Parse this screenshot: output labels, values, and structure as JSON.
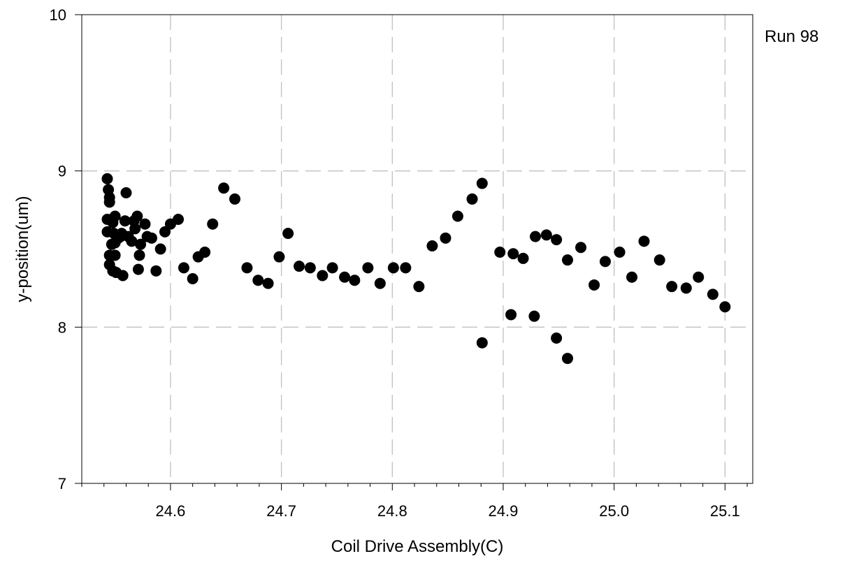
{
  "chart_data": {
    "type": "scatter",
    "title": "",
    "annotation": "Run 98",
    "xlabel": "Coil Drive Assembly(C)",
    "ylabel": "y-position(um)",
    "xlim": [
      24.52,
      25.125
    ],
    "ylim": [
      7,
      10
    ],
    "x_ticks": [
      24.6,
      24.7,
      24.8,
      24.9,
      25.0,
      25.1
    ],
    "x_tick_labels": [
      "24.6",
      "24.7",
      "24.8",
      "24.9",
      "25.0",
      "25.1"
    ],
    "x_minor_step": 0.02,
    "y_ticks": [
      7,
      8,
      9,
      10
    ],
    "y_tick_labels": [
      "7",
      "8",
      "9",
      "10"
    ],
    "grid": true,
    "grid_style": "dashed",
    "marker_color": "#000000",
    "grid_color": "#c0c0c0",
    "points": [
      {
        "x": 24.543,
        "y": 8.95
      },
      {
        "x": 24.544,
        "y": 8.88
      },
      {
        "x": 24.545,
        "y": 8.83
      },
      {
        "x": 24.545,
        "y": 8.8
      },
      {
        "x": 24.543,
        "y": 8.69
      },
      {
        "x": 24.543,
        "y": 8.61
      },
      {
        "x": 24.545,
        "y": 8.46
      },
      {
        "x": 24.545,
        "y": 8.4
      },
      {
        "x": 24.547,
        "y": 8.53
      },
      {
        "x": 24.548,
        "y": 8.67
      },
      {
        "x": 24.549,
        "y": 8.6
      },
      {
        "x": 24.548,
        "y": 8.36
      },
      {
        "x": 24.55,
        "y": 8.71
      },
      {
        "x": 24.55,
        "y": 8.54
      },
      {
        "x": 24.55,
        "y": 8.46
      },
      {
        "x": 24.551,
        "y": 8.35
      },
      {
        "x": 24.553,
        "y": 8.57
      },
      {
        "x": 24.555,
        "y": 8.58
      },
      {
        "x": 24.556,
        "y": 8.6
      },
      {
        "x": 24.557,
        "y": 8.33
      },
      {
        "x": 24.559,
        "y": 8.68
      },
      {
        "x": 24.56,
        "y": 8.86
      },
      {
        "x": 24.562,
        "y": 8.58
      },
      {
        "x": 24.565,
        "y": 8.55
      },
      {
        "x": 24.567,
        "y": 8.68
      },
      {
        "x": 24.568,
        "y": 8.63
      },
      {
        "x": 24.57,
        "y": 8.71
      },
      {
        "x": 24.571,
        "y": 8.37
      },
      {
        "x": 24.572,
        "y": 8.46
      },
      {
        "x": 24.573,
        "y": 8.53
      },
      {
        "x": 24.577,
        "y": 8.66
      },
      {
        "x": 24.579,
        "y": 8.58
      },
      {
        "x": 24.583,
        "y": 8.57
      },
      {
        "x": 24.587,
        "y": 8.36
      },
      {
        "x": 24.591,
        "y": 8.5
      },
      {
        "x": 24.595,
        "y": 8.61
      },
      {
        "x": 24.6,
        "y": 8.66
      },
      {
        "x": 24.607,
        "y": 8.69
      },
      {
        "x": 24.612,
        "y": 8.38
      },
      {
        "x": 24.62,
        "y": 8.31
      },
      {
        "x": 24.625,
        "y": 8.45
      },
      {
        "x": 24.631,
        "y": 8.48
      },
      {
        "x": 24.638,
        "y": 8.66
      },
      {
        "x": 24.648,
        "y": 8.89
      },
      {
        "x": 24.658,
        "y": 8.82
      },
      {
        "x": 24.669,
        "y": 8.38
      },
      {
        "x": 24.679,
        "y": 8.3
      },
      {
        "x": 24.688,
        "y": 8.28
      },
      {
        "x": 24.698,
        "y": 8.45
      },
      {
        "x": 24.706,
        "y": 8.6
      },
      {
        "x": 24.716,
        "y": 8.39
      },
      {
        "x": 24.726,
        "y": 8.38
      },
      {
        "x": 24.737,
        "y": 8.33
      },
      {
        "x": 24.746,
        "y": 8.38
      },
      {
        "x": 24.757,
        "y": 8.32
      },
      {
        "x": 24.766,
        "y": 8.3
      },
      {
        "x": 24.778,
        "y": 8.38
      },
      {
        "x": 24.789,
        "y": 8.28
      },
      {
        "x": 24.801,
        "y": 8.38
      },
      {
        "x": 24.812,
        "y": 8.38
      },
      {
        "x": 24.824,
        "y": 8.26
      },
      {
        "x": 24.836,
        "y": 8.52
      },
      {
        "x": 24.848,
        "y": 8.57
      },
      {
        "x": 24.859,
        "y": 8.71
      },
      {
        "x": 24.872,
        "y": 8.82
      },
      {
        "x": 24.881,
        "y": 8.92
      },
      {
        "x": 24.881,
        "y": 7.9
      },
      {
        "x": 24.897,
        "y": 8.48
      },
      {
        "x": 24.907,
        "y": 8.08
      },
      {
        "x": 24.909,
        "y": 8.47
      },
      {
        "x": 24.918,
        "y": 8.44
      },
      {
        "x": 24.928,
        "y": 8.07
      },
      {
        "x": 24.929,
        "y": 8.58
      },
      {
        "x": 24.939,
        "y": 8.59
      },
      {
        "x": 24.948,
        "y": 8.56
      },
      {
        "x": 24.948,
        "y": 7.93
      },
      {
        "x": 24.958,
        "y": 8.43
      },
      {
        "x": 24.958,
        "y": 7.8
      },
      {
        "x": 24.97,
        "y": 8.51
      },
      {
        "x": 24.982,
        "y": 8.27
      },
      {
        "x": 24.992,
        "y": 8.42
      },
      {
        "x": 25.005,
        "y": 8.48
      },
      {
        "x": 25.016,
        "y": 8.32
      },
      {
        "x": 25.027,
        "y": 8.55
      },
      {
        "x": 25.041,
        "y": 8.43
      },
      {
        "x": 25.052,
        "y": 8.26
      },
      {
        "x": 25.065,
        "y": 8.25
      },
      {
        "x": 25.076,
        "y": 8.32
      },
      {
        "x": 25.089,
        "y": 8.21
      },
      {
        "x": 25.1,
        "y": 8.13
      }
    ]
  }
}
